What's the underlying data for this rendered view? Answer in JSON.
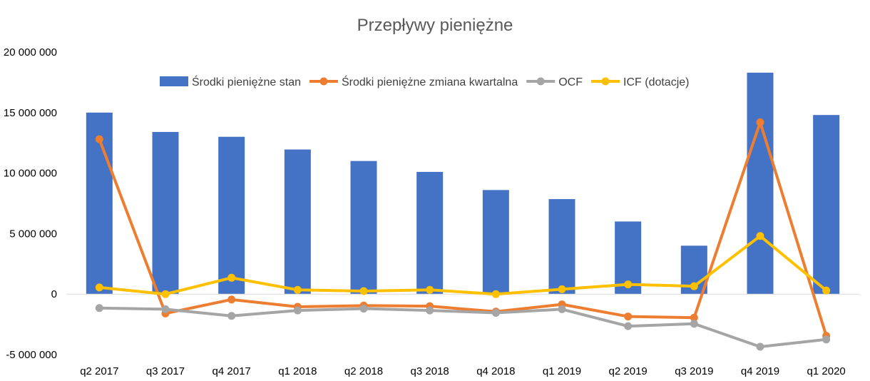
{
  "chart_data": {
    "type": "bar",
    "title": "Przepływy pieniężne",
    "categories": [
      "q2 2017",
      "q3 2017",
      "q4 2017",
      "q1 2018",
      "q2 2018",
      "q3 2018",
      "q4 2018",
      "q1 2019",
      "q2 2019",
      "q3 2019",
      "q4 2019",
      "q1 2020"
    ],
    "ylim": [
      -5000000,
      20000000
    ],
    "yticks": [
      -5000000,
      0,
      5000000,
      10000000,
      15000000,
      20000000
    ],
    "ytick_labels": [
      "-5 000 000",
      "0",
      "5 000 000",
      "10 000 000",
      "15 000 000",
      "20 000 000"
    ],
    "legend_position": "top",
    "grid": false,
    "series": [
      {
        "name": "Środki pieniężne stan",
        "type": "bar",
        "color": "#4472C4",
        "values": [
          15000000,
          13400000,
          13000000,
          11950000,
          11000000,
          10100000,
          8600000,
          7850000,
          6000000,
          4000000,
          18300000,
          14800000
        ]
      },
      {
        "name": "Środki pieniężne zmiana kwartalna",
        "type": "line",
        "color": "#ED7D31",
        "values": [
          12800000,
          -1600000,
          -450000,
          -1050000,
          -950000,
          -1000000,
          -1450000,
          -850000,
          -1850000,
          -1950000,
          14200000,
          -3450000
        ]
      },
      {
        "name": "OCF",
        "type": "line",
        "color": "#A5A5A5",
        "values": [
          -1150000,
          -1250000,
          -1800000,
          -1350000,
          -1200000,
          -1350000,
          -1550000,
          -1250000,
          -2650000,
          -2450000,
          -4350000,
          -3750000
        ]
      },
      {
        "name": "ICF (dotacje)",
        "type": "line",
        "color": "#FFC000",
        "values": [
          550000,
          0,
          1350000,
          350000,
          250000,
          350000,
          0,
          400000,
          800000,
          650000,
          4800000,
          300000
        ]
      }
    ]
  }
}
